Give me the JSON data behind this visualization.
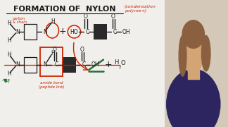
{
  "bg_color": "#f0efeb",
  "title": "FORMATION OF  NYLON",
  "subtitle": "(condensation\npolyme→)",
  "black": "#1a1a1a",
  "red": "#cc2200",
  "green": "#2a6e3a",
  "dark_block": "#2a2a2a",
  "photo_bg": "#b8956a",
  "photo_face": "#d4a574",
  "photo_hair": "#8b6040",
  "photo_shirt": "#2d2560"
}
